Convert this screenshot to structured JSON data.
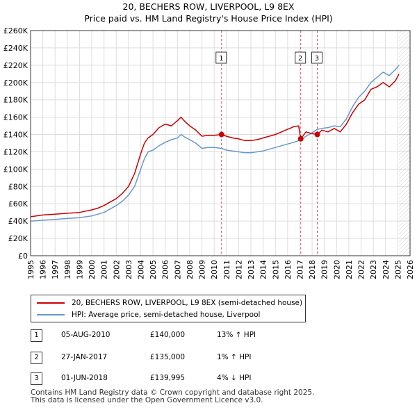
{
  "title": "20, BECHERS ROW, LIVERPOOL, L9 8EX",
  "subtitle": "Price paid vs. HM Land Registry's House Price Index (HPI)",
  "colors": {
    "price_paid": "#cc0000",
    "hpi": "#6699cc",
    "grid": "#dddddd",
    "sale_marker": "#cc0000",
    "forecast_hatch": "#aaaaaa"
  },
  "legend": {
    "price_paid_label": "20, BECHERS ROW, LIVERPOOL, L9 8EX (semi-detached house)",
    "hpi_label": "HPI: Average price, semi-detached house, Liverpool"
  },
  "sales": [
    {
      "num": "1",
      "date": "05-AUG-2010",
      "price": "£140,000",
      "hpi_change": "13% ↑ HPI"
    },
    {
      "num": "2",
      "date": "27-JAN-2017",
      "price": "£135,000",
      "hpi_change": "1% ↑ HPI"
    },
    {
      "num": "3",
      "date": "01-JUN-2018",
      "price": "£139,995",
      "hpi_change": "4% ↓ HPI"
    }
  ],
  "footer": {
    "line1": "Contains HM Land Registry data © Crown copyright and database right 2025.",
    "line2": "This data is licensed under the Open Government Licence v3.0."
  },
  "chart_data": {
    "type": "line",
    "xlim": [
      1995,
      2026
    ],
    "ylim": [
      0,
      260000
    ],
    "x_ticks": [
      "1995",
      "1996",
      "1997",
      "1998",
      "1999",
      "2000",
      "2001",
      "2002",
      "2003",
      "2004",
      "2005",
      "2006",
      "2007",
      "2008",
      "2009",
      "2010",
      "2011",
      "2012",
      "2013",
      "2014",
      "2015",
      "2016",
      "2017",
      "2018",
      "2019",
      "2020",
      "2021",
      "2022",
      "2023",
      "2024",
      "2025",
      "2026"
    ],
    "y_ticks": [
      "£0",
      "£20K",
      "£40K",
      "£60K",
      "£80K",
      "£100K",
      "£120K",
      "£140K",
      "£160K",
      "£180K",
      "£200K",
      "£220K",
      "£240K",
      "£260K"
    ],
    "y_tick_values": [
      0,
      20000,
      40000,
      60000,
      80000,
      100000,
      120000,
      140000,
      160000,
      180000,
      200000,
      220000,
      240000,
      260000
    ],
    "grid": true,
    "forecast_from": 2025.1,
    "sale_markers": [
      {
        "label": "1",
        "x": 2010.6,
        "y": 140000
      },
      {
        "label": "2",
        "x": 2017.07,
        "y": 135000
      },
      {
        "label": "3",
        "x": 2018.42,
        "y": 139995
      }
    ],
    "series": [
      {
        "name": "20, BECHERS ROW, LIVERPOOL, L9 8EX (semi-detached house)",
        "x": [
          1995,
          1996,
          1997,
          1998,
          1999,
          2000,
          2000.5,
          2001,
          2001.5,
          2002,
          2002.5,
          2003,
          2003.5,
          2004,
          2004.3,
          2004.6,
          2005,
          2005.5,
          2006,
          2006.5,
          2007,
          2007.3,
          2007.6,
          2008,
          2008.5,
          2009,
          2009.5,
          2010,
          2010.6,
          2011,
          2011.5,
          2012,
          2012.5,
          2013,
          2013.5,
          2014,
          2014.5,
          2015,
          2015.5,
          2016,
          2016.5,
          2016.9,
          2017.07,
          2017.5,
          2018,
          2018.42,
          2018.8,
          2019.3,
          2019.8,
          2020.3,
          2020.8,
          2021.3,
          2021.8,
          2022.3,
          2022.8,
          2023.3,
          2023.8,
          2024.3,
          2024.8,
          2025.1
        ],
        "values": [
          45000,
          47000,
          48000,
          49000,
          50000,
          53000,
          55000,
          58000,
          62000,
          66000,
          72000,
          80000,
          95000,
          118000,
          130000,
          136000,
          140000,
          148000,
          152000,
          150000,
          156000,
          160000,
          155000,
          150000,
          145000,
          138000,
          139000,
          139000,
          140000,
          138000,
          136000,
          135000,
          133000,
          133000,
          134000,
          136000,
          138000,
          140000,
          143000,
          146000,
          149000,
          150000,
          135000,
          143000,
          141000,
          139995,
          145000,
          143000,
          147000,
          143000,
          152000,
          165000,
          175000,
          180000,
          192000,
          195000,
          200000,
          195000,
          202000,
          210000
        ]
      },
      {
        "name": "HPI: Average price, semi-detached house, Liverpool",
        "x": [
          1995,
          1996,
          1997,
          1998,
          1999,
          2000,
          2000.5,
          2001,
          2001.5,
          2002,
          2002.5,
          2003,
          2003.5,
          2004,
          2004.3,
          2004.6,
          2005,
          2005.5,
          2006,
          2006.5,
          2007,
          2007.3,
          2007.6,
          2008,
          2008.5,
          2009,
          2009.5,
          2010,
          2010.6,
          2011,
          2011.5,
          2012,
          2012.5,
          2013,
          2013.5,
          2014,
          2014.5,
          2015,
          2015.5,
          2016,
          2016.5,
          2016.9,
          2017.07,
          2017.5,
          2018,
          2018.42,
          2018.8,
          2019.3,
          2019.8,
          2020.3,
          2020.8,
          2021.3,
          2021.8,
          2022.3,
          2022.8,
          2023.3,
          2023.8,
          2024.3,
          2024.8,
          2025.1
        ],
        "values": [
          40000,
          41000,
          42000,
          43000,
          44000,
          46000,
          48000,
          50000,
          54000,
          58000,
          63000,
          70000,
          80000,
          100000,
          112000,
          120000,
          122000,
          127000,
          131000,
          134000,
          136000,
          140000,
          137000,
          134000,
          130000,
          124000,
          125000,
          125000,
          124000,
          122000,
          121000,
          120000,
          119000,
          119000,
          120000,
          121000,
          123000,
          125000,
          127000,
          129000,
          131000,
          133000,
          134000,
          138000,
          142000,
          146000,
          147000,
          148000,
          150000,
          149000,
          158000,
          172000,
          183000,
          190000,
          200000,
          206000,
          212000,
          208000,
          215000,
          220000
        ]
      }
    ]
  }
}
